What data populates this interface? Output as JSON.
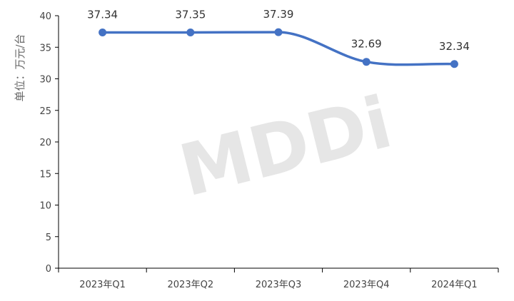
{
  "chart_data": {
    "type": "line",
    "categories": [
      "2023年Q1",
      "2023年Q2",
      "2023年Q3",
      "2023年Q4",
      "2024年Q1"
    ],
    "series": [
      {
        "values": [
          37.34,
          37.35,
          37.39,
          32.69,
          32.34
        ],
        "color": "#4472c4"
      }
    ],
    "ylabel": "单位：万元/台",
    "ylim": [
      0,
      40
    ],
    "yticks": [
      0,
      5,
      10,
      15,
      20,
      25,
      30,
      35,
      40
    ],
    "smooth": true,
    "grid": false,
    "data_labels": [
      "37.34",
      "37.35",
      "37.39",
      "32.69",
      "32.34"
    ]
  },
  "watermark": "MDDi"
}
